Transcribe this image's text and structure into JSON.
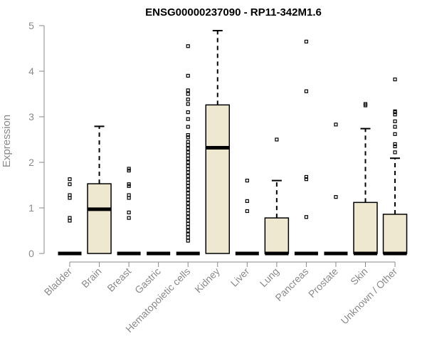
{
  "chart_data": {
    "type": "box",
    "title": "ENSG00000237090 - RP11-342M1.6",
    "xlabel": "",
    "ylabel": "Expression",
    "ylim": [
      0,
      5
    ],
    "yticks": [
      0,
      1,
      2,
      3,
      4,
      5
    ],
    "categories": [
      "Bladder",
      "Brain",
      "Breast",
      "Gastric",
      "Hematopoietic cells",
      "Kidney",
      "Liver",
      "Lung",
      "Pancreas",
      "Prostate",
      "Skin",
      "Unknown / Other"
    ],
    "boxes": [
      {
        "q1": 0,
        "median": 0,
        "q3": 0,
        "whisker_low": 0,
        "whisker_high": 0,
        "outliers": [
          0.72,
          0.78,
          1.22,
          1.28,
          1.52,
          1.63
        ]
      },
      {
        "q1": 0,
        "median": 0.97,
        "q3": 1.53,
        "whisker_low": 0,
        "whisker_high": 2.79,
        "outliers": []
      },
      {
        "q1": 0,
        "median": 0,
        "q3": 0,
        "whisker_low": 0,
        "whisker_high": 0,
        "outliers": [
          0.78,
          0.9,
          1.22,
          1.28,
          1.48,
          1.52,
          1.82,
          1.86
        ]
      },
      {
        "q1": 0,
        "median": 0,
        "q3": 0,
        "whisker_low": 0,
        "whisker_high": 0,
        "outliers": []
      },
      {
        "q1": 0,
        "median": 0,
        "q3": 0,
        "whisker_low": 0,
        "whisker_high": 0,
        "outliers": [
          0.28,
          0.35,
          0.42,
          0.5,
          0.58,
          0.65,
          0.72,
          0.8,
          0.88,
          0.95,
          1.02,
          1.1,
          1.18,
          1.25,
          1.32,
          1.4,
          1.48,
          1.55,
          1.62,
          1.7,
          1.78,
          1.85,
          1.92,
          2.0,
          2.08,
          2.15,
          2.22,
          2.3,
          2.38,
          2.45,
          2.55,
          2.6,
          2.78,
          2.95,
          3.1,
          3.28,
          3.38,
          3.5,
          3.58,
          3.9,
          4.55
        ]
      },
      {
        "q1": 0,
        "median": 2.32,
        "q3": 3.26,
        "whisker_low": 0,
        "whisker_high": 4.89,
        "outliers": []
      },
      {
        "q1": 0,
        "median": 0,
        "q3": 0,
        "whisker_low": 0,
        "whisker_high": 0,
        "outliers": [
          0.93,
          1.15,
          1.6
        ]
      },
      {
        "q1": 0,
        "median": 0,
        "q3": 0.78,
        "whisker_low": 0,
        "whisker_high": 1.6,
        "outliers": [
          2.5
        ]
      },
      {
        "q1": 0,
        "median": 0,
        "q3": 0,
        "whisker_low": 0,
        "whisker_high": 0,
        "outliers": [
          0.8,
          1.63,
          1.68,
          3.56,
          4.65
        ]
      },
      {
        "q1": 0,
        "median": 0,
        "q3": 0,
        "whisker_low": 0,
        "whisker_high": 0,
        "outliers": [
          1.24,
          2.83
        ]
      },
      {
        "q1": 0,
        "median": 0,
        "q3": 1.12,
        "whisker_low": 0,
        "whisker_high": 2.74,
        "outliers": [
          3.25,
          3.28
        ]
      },
      {
        "q1": 0,
        "median": 0,
        "q3": 0.86,
        "whisker_low": 0,
        "whisker_high": 2.09,
        "outliers": [
          2.22,
          2.35,
          2.4,
          2.62,
          2.78,
          2.9,
          3.05,
          3.1,
          3.12,
          3.82
        ]
      }
    ],
    "colors": {
      "box_fill": "#efe8d1",
      "box_stroke": "#000000",
      "axis": "#8a8a8a"
    },
    "grid": false,
    "legend": "none"
  }
}
